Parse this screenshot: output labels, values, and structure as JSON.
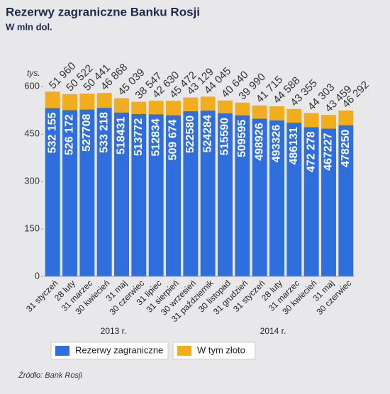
{
  "chart_data": {
    "type": "bar",
    "stacked": true,
    "title": "Rezerwy zagraniczne Banku Rosji",
    "subtitle": "W mln dol.",
    "y_label": "tys.",
    "source": "Źródło: Bank Rosji",
    "groups": [
      "2013 r.",
      "2014 r."
    ],
    "categories": [
      "31 styczeń",
      "28 luty",
      "31 marzec",
      "30 kwiecień",
      "31 maj",
      "30 czerwiec",
      "31 lipiec",
      "31 sierpień",
      "30 wrzesień",
      "31 październik",
      "30 listopad",
      "31 grudzień",
      "31 styczeń",
      "28 luty",
      "31 marzec",
      "30 kwiecień",
      "31 maj",
      "30 czerwiec"
    ],
    "series": [
      {
        "name": "Rezerwy zagraniczne",
        "color": "#2f6fdd",
        "values": [
          532.155,
          526.172,
          527.708,
          533.218,
          518.431,
          513.772,
          512.834,
          509.674,
          522.58,
          524.284,
          515.59,
          509.595,
          498.926,
          493.326,
          486.131,
          472.278,
          467.227,
          478.25
        ],
        "value_labels": [
          "532 155",
          "526 172",
          "527708",
          "533 218",
          "518431",
          "513772",
          "512834",
          "509 674",
          "522580",
          "524284",
          "515590",
          "509595",
          "498926",
          "493326",
          "486131",
          "472 278",
          "467227",
          "478250"
        ]
      },
      {
        "name": "W tym złoto",
        "color": "#f2ad1c",
        "values": [
          51.96,
          50.522,
          50.441,
          46.868,
          45.039,
          38.547,
          42.63,
          45.472,
          43.129,
          44.045,
          40.64,
          39.99,
          41.715,
          44.588,
          43.355,
          44.303,
          43.459,
          46.292
        ],
        "value_labels": [
          "51 960",
          "50 522",
          "50 441",
          "46 868",
          "45 039",
          "38 547",
          "42 630",
          "45 472",
          "43 129",
          "44 045",
          "40 640",
          "39 990",
          "41 715",
          "44 588",
          "43 355",
          "44 303",
          "43 459",
          "46 292"
        ]
      }
    ],
    "ylim": [
      0,
      650
    ],
    "yticks": [
      0,
      150,
      300,
      450,
      600
    ]
  }
}
